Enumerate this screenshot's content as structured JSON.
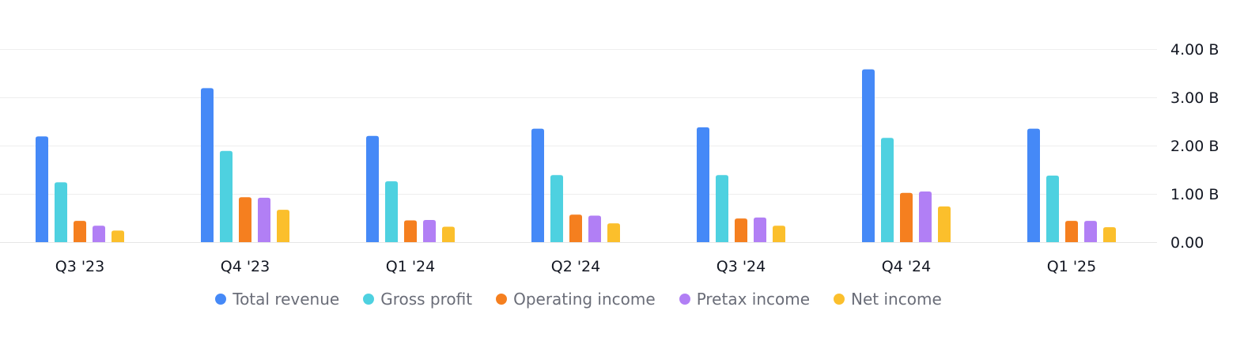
{
  "chart_data": {
    "type": "bar",
    "categories": [
      "Q3 '23",
      "Q4 '23",
      "Q1 '24",
      "Q2 '24",
      "Q3 '24",
      "Q4 '24",
      "Q1 '25"
    ],
    "series": [
      {
        "name": "Total revenue",
        "color": "#4589f7",
        "values": [
          2.19,
          3.19,
          2.2,
          2.35,
          2.38,
          3.58,
          2.35
        ]
      },
      {
        "name": "Gross profit",
        "color": "#4ed1e0",
        "values": [
          1.24,
          1.89,
          1.26,
          1.39,
          1.39,
          2.16,
          1.38
        ]
      },
      {
        "name": "Operating income",
        "color": "#f57f1f",
        "values": [
          0.44,
          0.93,
          0.45,
          0.57,
          0.49,
          1.02,
          0.44
        ]
      },
      {
        "name": "Pretax income",
        "color": "#b17ff5",
        "values": [
          0.34,
          0.92,
          0.46,
          0.55,
          0.51,
          1.05,
          0.44
        ]
      },
      {
        "name": "Net income",
        "color": "#fbbf2c",
        "values": [
          0.24,
          0.67,
          0.32,
          0.39,
          0.34,
          0.74,
          0.31
        ]
      }
    ],
    "yticks": [
      0,
      1,
      2,
      3,
      4
    ],
    "ytick_labels": [
      "0.00",
      "1.00 B",
      "2.00 B",
      "3.00 B",
      "4.00 B"
    ],
    "ylim": [
      0,
      4
    ],
    "grid": true,
    "legend_position": "bottom-center"
  }
}
